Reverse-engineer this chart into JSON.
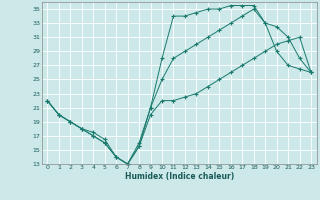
{
  "xlabel": "Humidex (Indice chaleur)",
  "bg_color": "#cce8e8",
  "grid_color": "#ffffff",
  "line_color": "#1a7a6e",
  "xlim": [
    -0.5,
    23.5
  ],
  "ylim": [
    13,
    36
  ],
  "yticks": [
    13,
    15,
    17,
    19,
    21,
    23,
    25,
    27,
    29,
    31,
    33,
    35
  ],
  "xticks": [
    0,
    1,
    2,
    3,
    4,
    5,
    6,
    7,
    8,
    9,
    10,
    11,
    12,
    13,
    14,
    15,
    16,
    17,
    18,
    19,
    20,
    21,
    22,
    23
  ],
  "line1_x": [
    0,
    1,
    2,
    3,
    4,
    5,
    6,
    7,
    8,
    9,
    10,
    11,
    12,
    13,
    14,
    15,
    16,
    17,
    18,
    19,
    20,
    21,
    22,
    23
  ],
  "line1_y": [
    22,
    20,
    19,
    18,
    17.5,
    16.5,
    14,
    13,
    15.5,
    21,
    28,
    34,
    34,
    34.5,
    35,
    35,
    35.5,
    35.5,
    35.5,
    33,
    32.5,
    31,
    28,
    26
  ],
  "line2_x": [
    0,
    1,
    2,
    3,
    4,
    5,
    6,
    7,
    8,
    9,
    10,
    11,
    12,
    13,
    14,
    15,
    16,
    17,
    18,
    19,
    20,
    21,
    22,
    23
  ],
  "line2_y": [
    22,
    20,
    19,
    18,
    17,
    16,
    14,
    13,
    16,
    21,
    25,
    28,
    29,
    30,
    31,
    32,
    33,
    34,
    35,
    33,
    29,
    27,
    26.5,
    26
  ],
  "line3_x": [
    0,
    1,
    2,
    3,
    4,
    5,
    6,
    7,
    8,
    9,
    10,
    11,
    12,
    13,
    14,
    15,
    16,
    17,
    18,
    19,
    20,
    21,
    22,
    23
  ],
  "line3_y": [
    22,
    20,
    19,
    18,
    17,
    16,
    14,
    13,
    15.5,
    20,
    22,
    22,
    22.5,
    23,
    24,
    25,
    26,
    27,
    28,
    29,
    30,
    30.5,
    31,
    26
  ]
}
